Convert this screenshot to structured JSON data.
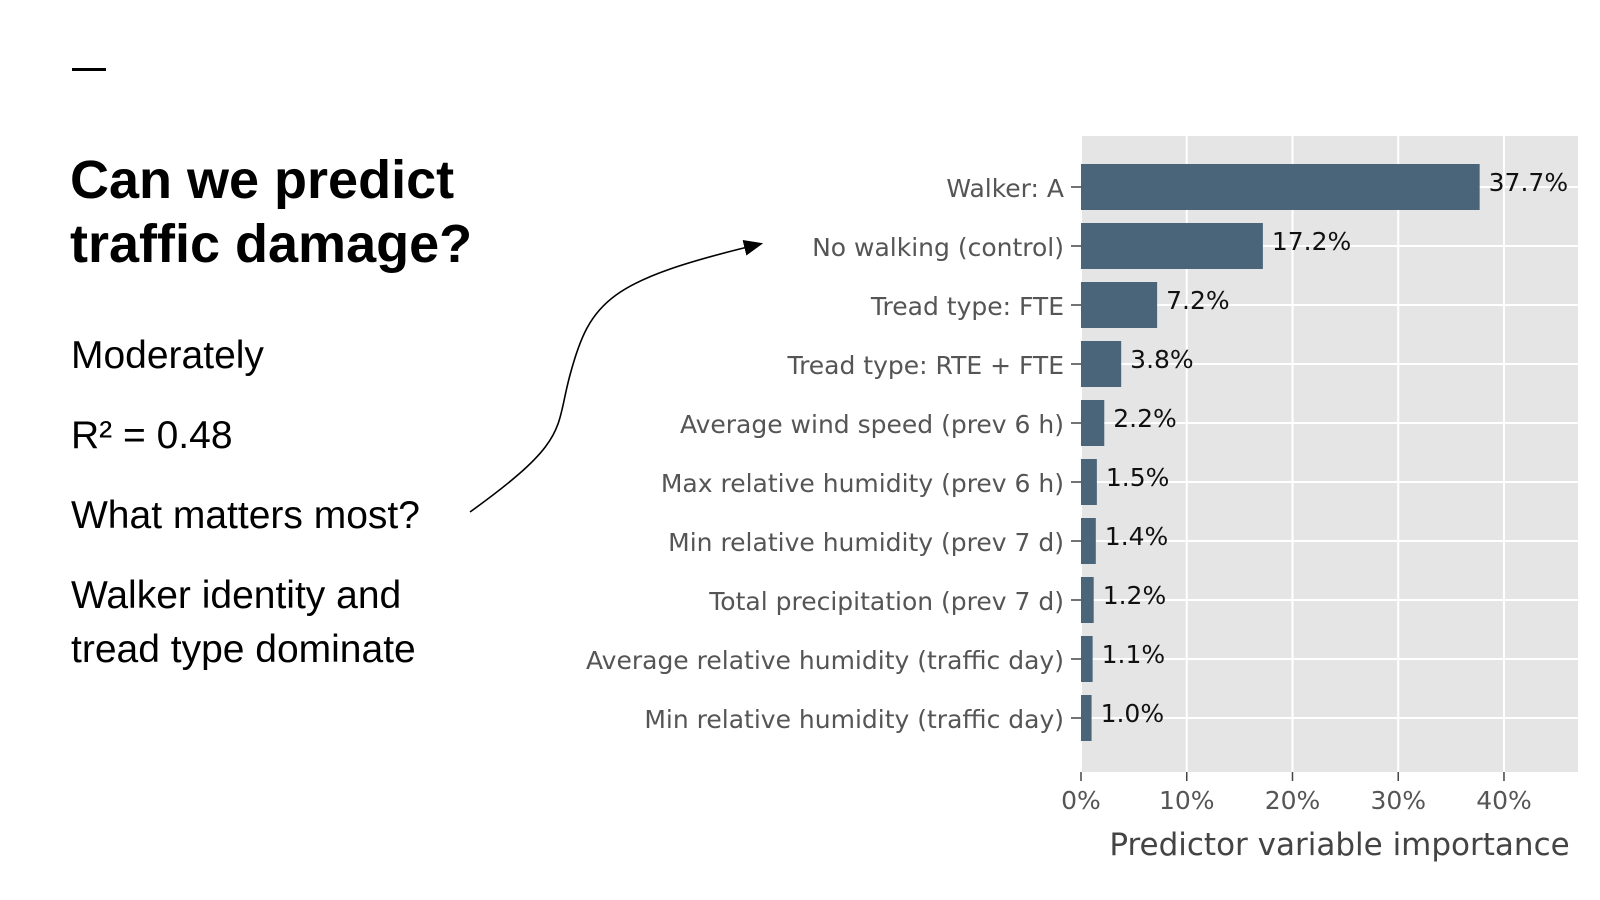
{
  "slide": {
    "title": "Can we predict traffic damage?",
    "point1": "Moderately",
    "point2": "R² = 0.48",
    "point3": "What matters most?",
    "point4_line1": "Walker identity and",
    "point4_line2": "tread type dominate"
  },
  "colors": {
    "bar": "#4a6579",
    "panel": "#e5e5e5",
    "grid": "#ffffff"
  },
  "chart_data": {
    "type": "bar",
    "orientation": "horizontal",
    "categories": [
      "Walker: A",
      "No walking (control)",
      "Tread type: FTE",
      "Tread type: RTE + FTE",
      "Average wind speed (prev 6 h)",
      "Max relative humidity (prev 6 h)",
      "Min relative humidity (prev 7 d)",
      "Total precipitation (prev 7 d)",
      "Average relative humidity (traffic day)",
      "Min relative humidity (traffic day)"
    ],
    "values": [
      37.7,
      17.2,
      7.2,
      3.8,
      2.2,
      1.5,
      1.4,
      1.2,
      1.1,
      1.0
    ],
    "value_labels": [
      "37.7%",
      "17.2%",
      "7.2%",
      "3.8%",
      "2.2%",
      "1.5%",
      "1.4%",
      "1.2%",
      "1.1%",
      "1.0%"
    ],
    "xticks": [
      0,
      10,
      20,
      30,
      40
    ],
    "xtick_labels": [
      "0%",
      "10%",
      "20%",
      "30%",
      "40%"
    ],
    "xlim": [
      0,
      47
    ],
    "xlabel": "Predictor variable importance",
    "grid": true
  }
}
